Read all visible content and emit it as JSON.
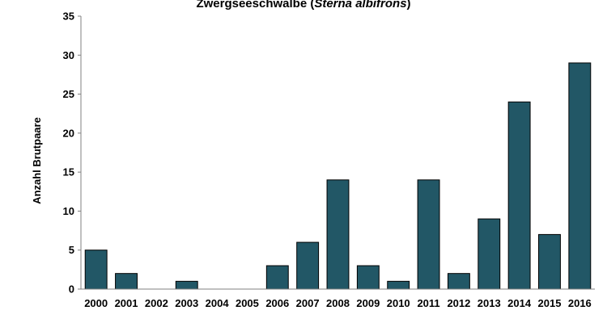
{
  "chart_data": {
    "type": "bar",
    "title_main": "Zwergseeschwalbe (",
    "title_species": "Sterna albifrons",
    "title_end": ")",
    "ylabel": "Anzahl Brutpaare",
    "xlabel": "",
    "categories": [
      "2000",
      "2001",
      "2002",
      "2003",
      "2004",
      "2005",
      "2006",
      "2007",
      "2008",
      "2009",
      "2010",
      "2011",
      "2012",
      "2013",
      "2014",
      "2015",
      "2016"
    ],
    "values": [
      5,
      2,
      0,
      1,
      0,
      0,
      3,
      6,
      14,
      3,
      1,
      14,
      2,
      9,
      24,
      7,
      29
    ],
    "ylim": [
      0,
      35
    ],
    "yticks": [
      "0",
      "5",
      "10",
      "15",
      "20",
      "25",
      "30",
      "35"
    ],
    "grid": false,
    "legend": "none",
    "bar_color": "#225766",
    "bar_border": "#000000"
  }
}
